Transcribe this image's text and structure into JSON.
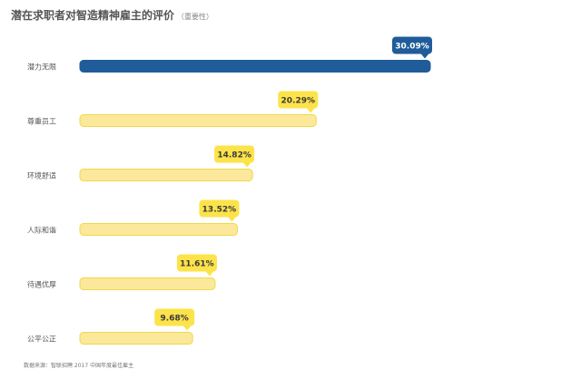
{
  "title": "潜在求职者对智造精神雇主的评价",
  "subtitle": "（重要性）",
  "source": "数据来源：智联招聘 2017 中国年度最佳雇主",
  "colors": {
    "highlight_bar": "#1F5C99",
    "bar": "#FBE89A",
    "bar_border": "#F0D84A",
    "highlight_badge": "#1F5C99",
    "badge": "#FCE34A",
    "badge_text": "#3A3A3A",
    "highlight_badge_text": "#FFFFFF",
    "category_text": "#555555"
  },
  "chart_data": {
    "type": "bar",
    "orientation": "horizontal",
    "categories": [
      "潜力无限",
      "尊重员工",
      "环境舒适",
      "人际和谐",
      "待遇优厚",
      "公平公正"
    ],
    "values": [
      30.09,
      20.29,
      14.82,
      13.52,
      11.61,
      9.68
    ],
    "value_labels": [
      "30.09%",
      "20.29%",
      "14.82%",
      "13.52%",
      "11.61%",
      "9.68%"
    ],
    "highlight_index": 0,
    "xlim": [
      0,
      30.09
    ],
    "grid": false,
    "legend": "none"
  }
}
